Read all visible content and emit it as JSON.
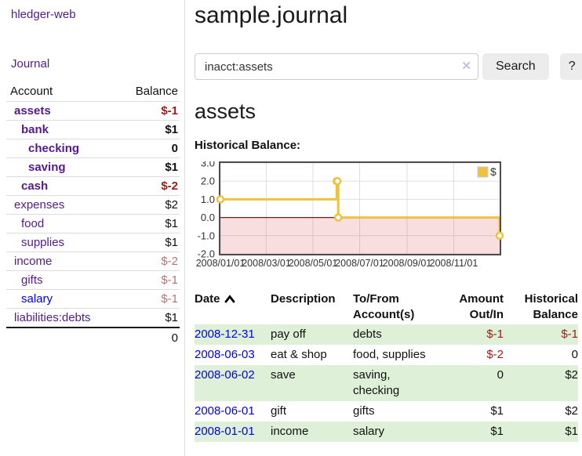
{
  "colors": {
    "link_purple": "#551a8b",
    "link_blue": "#0000e6",
    "negative_red": "#9e1a1a",
    "negative_muted_red": "#b87474",
    "row_green": "#dff0d8",
    "chart_gold": "#edc240",
    "chart_negative_region": "#f9dcdc",
    "chart_zero_line": "#871919",
    "chart_border": "#4c4c4c",
    "chart_grid": "#e0e0e0"
  },
  "app": {
    "brand": "hledger-web",
    "nav_journal": "Journal"
  },
  "sidebar": {
    "table_headers": {
      "account": "Account",
      "balance": "Balance"
    },
    "accounts": [
      {
        "name": "assets",
        "depth": 1,
        "balance": "$-1",
        "bold": true,
        "balance_tone": "negative"
      },
      {
        "name": "bank",
        "depth": 2,
        "balance": "$1",
        "bold": true,
        "balance_tone": "normal"
      },
      {
        "name": "checking",
        "depth": 3,
        "balance": "0",
        "bold": true,
        "balance_tone": "normal"
      },
      {
        "name": "saving",
        "depth": 3,
        "balance": "$1",
        "bold": true,
        "balance_tone": "normal"
      },
      {
        "name": "cash",
        "depth": 2,
        "balance": "$-2",
        "bold": true,
        "balance_tone": "negative"
      },
      {
        "name": "expenses",
        "depth": 1,
        "balance": "$2",
        "bold": false,
        "balance_tone": "normal"
      },
      {
        "name": "food",
        "depth": 2,
        "balance": "$1",
        "bold": false,
        "balance_tone": "normal"
      },
      {
        "name": "supplies",
        "depth": 2,
        "balance": "$1",
        "bold": false,
        "balance_tone": "normal"
      },
      {
        "name": "income",
        "depth": 1,
        "balance": "$-2",
        "bold": false,
        "balance_tone": "negative-muted"
      },
      {
        "name": "gifts",
        "depth": 2,
        "balance": "$-1",
        "bold": false,
        "balance_tone": "negative-muted"
      },
      {
        "name": "salary",
        "depth": 2,
        "balance": "$-1",
        "bold": false,
        "balance_tone": "negative-muted",
        "link_tone": "blue"
      },
      {
        "name": "liabilities:debts",
        "depth": 1,
        "balance": "$1",
        "bold": false,
        "balance_tone": "normal"
      }
    ],
    "total": "0"
  },
  "header": {
    "title": "sample.journal"
  },
  "search": {
    "value": "inacct:assets",
    "clear_icon": "✕",
    "search_label": "Search",
    "help_label": "?"
  },
  "account_view": {
    "title": "assets",
    "chart_heading": "Historical Balance:"
  },
  "chart_data": {
    "type": "line",
    "step": true,
    "title": "Historical Balance",
    "series": [
      {
        "name": "$",
        "color": "#edc240",
        "points": [
          [
            "2008-01-01",
            1
          ],
          [
            "2008-06-01",
            2
          ],
          [
            "2008-06-02",
            2
          ],
          [
            "2008-06-03",
            0
          ],
          [
            "2008-12-31",
            -1
          ]
        ]
      }
    ],
    "x_range": [
      "2008-01-01",
      "2008-12-31"
    ],
    "x_ticks": [
      "2008/01/01",
      "2008/03/01",
      "2008/05/01",
      "2008/07/01",
      "2008/09/01",
      "2008/11/01"
    ],
    "y_ticks": [
      3.0,
      2.0,
      1.0,
      0.0,
      -1.0,
      -2.0
    ],
    "ylim": [
      -2,
      3
    ],
    "grid": true,
    "legend": {
      "label": "$",
      "position": "top-right"
    },
    "negative_region": {
      "from": 0,
      "to": -2
    }
  },
  "register": {
    "columns": [
      "Date",
      "Description",
      "To/From Account(s)",
      "Amount Out/In",
      "Historical Balance"
    ],
    "sort": {
      "column": "Date",
      "indicator": "caret-up"
    },
    "rows": [
      {
        "date": "2008-12-31",
        "description": "pay off",
        "accounts": "debts",
        "amount": "$-1",
        "amount_negative": true,
        "balance": "$-1",
        "balance_negative": true
      },
      {
        "date": "2008-06-03",
        "description": "eat & shop",
        "accounts": "food, supplies",
        "amount": "$-2",
        "amount_negative": true,
        "balance": "0",
        "balance_negative": false
      },
      {
        "date": "2008-06-02",
        "description": "save",
        "accounts": "saving, checking",
        "amount": "0",
        "amount_negative": false,
        "balance": "$2",
        "balance_negative": false
      },
      {
        "date": "2008-06-01",
        "description": "gift",
        "accounts": "gifts",
        "amount": "$1",
        "amount_negative": false,
        "balance": "$2",
        "balance_negative": false
      },
      {
        "date": "2008-01-01",
        "description": "income",
        "accounts": "salary",
        "amount": "$1",
        "amount_negative": false,
        "balance": "$1",
        "balance_negative": false
      }
    ]
  }
}
